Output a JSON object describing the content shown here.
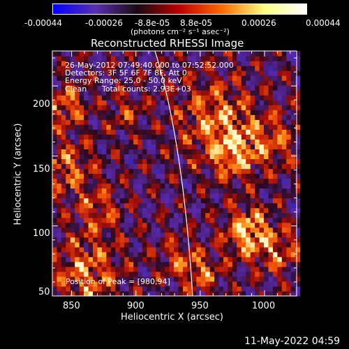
{
  "colorbar": {
    "tick_labels": [
      "-0.00044",
      "-0.00026",
      "-8.8e-05",
      "8.8e-05",
      "0.00026",
      "0.00044"
    ],
    "unit_label": "(photons cm⁻² s⁻¹ asec⁻²)",
    "colors": [
      "#0000ff",
      "#5a2fb0",
      "#1a0a10",
      "#c00000",
      "#ff6a00",
      "#ffff80",
      "#ffffff"
    ]
  },
  "chart_data": {
    "type": "heatmap",
    "title": "Reconstructed RHESSI Image",
    "xlabel": "Heliocentric X (arcsec)",
    "ylabel": "Heliocentric Y (arcsec)",
    "x_ticks": [
      850,
      900,
      950,
      1000
    ],
    "y_ticks": [
      50,
      100,
      150,
      200
    ],
    "xlim": [
      835,
      1025
    ],
    "ylim": [
      50,
      225
    ],
    "annotations": [
      "26-May-2012 07:49:40.000 to 07:52:52.000",
      "Detectors: 3F 5F 6F 7F 8F, Att 0",
      "Energy Range: 25.0 - 50.0 keV",
      "Clean",
      "Total counts: 2.93E+03"
    ],
    "peak_label": "Position of Peak = [980,94]",
    "peak": [
      980,
      94
    ],
    "hot_regions": [
      {
        "x": 985,
        "y": 94,
        "intensity": 1.0,
        "spread": 12
      },
      {
        "x": 960,
        "y": 175,
        "intensity": 0.7,
        "spread": 20
      },
      {
        "x": 975,
        "y": 150,
        "intensity": 0.8,
        "spread": 12
      },
      {
        "x": 1005,
        "y": 160,
        "intensity": 0.55,
        "spread": 14
      },
      {
        "x": 860,
        "y": 65,
        "intensity": 0.7,
        "spread": 18
      },
      {
        "x": 845,
        "y": 185,
        "intensity": 0.7,
        "spread": 10
      },
      {
        "x": 845,
        "y": 140,
        "intensity": 0.6,
        "spread": 14
      },
      {
        "x": 870,
        "y": 110,
        "intensity": 0.5,
        "spread": 12
      },
      {
        "x": 950,
        "y": 65,
        "intensity": 0.6,
        "spread": 10
      },
      {
        "x": 930,
        "y": 75,
        "intensity": 0.5,
        "spread": 10
      },
      {
        "x": 1010,
        "y": 80,
        "intensity": 0.55,
        "spread": 12
      },
      {
        "x": 890,
        "y": 180,
        "intensity": 0.4,
        "spread": 10
      }
    ]
  },
  "footer": {
    "timestamp": "11-May-2022 04:59"
  }
}
